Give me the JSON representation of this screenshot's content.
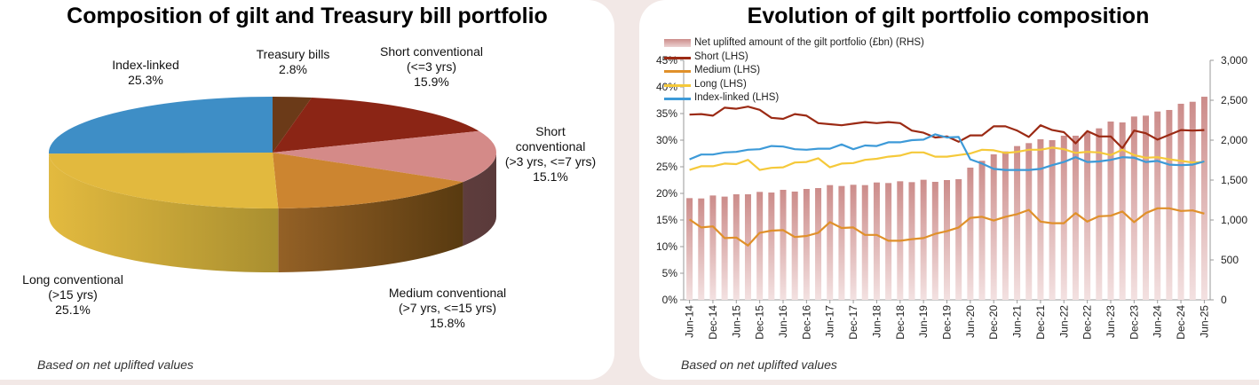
{
  "left": {
    "title": "Composition of gilt and Treasury bill portfolio",
    "footnote": "Based on net uplifted values"
  },
  "right": {
    "title": "Evolution of gilt portfolio composition",
    "footnote": "Based on net uplifted values"
  },
  "chart_data": [
    {
      "type": "pie",
      "title": "Composition of gilt and Treasury bill portfolio",
      "slices": [
        {
          "label_lines": [
            "Treasury bills"
          ],
          "value_label": "2.8%",
          "value": 2.8,
          "color": "#6b3a18"
        },
        {
          "label_lines": [
            "Short conventional",
            "(<=3 yrs)"
          ],
          "value_label": "15.9%",
          "value": 15.9,
          "color": "#8b2515"
        },
        {
          "label_lines": [
            "Short",
            "conventional",
            "(>3 yrs, <=7 yrs)"
          ],
          "value_label": "15.1%",
          "value": 15.1,
          "color": "#d48a88"
        },
        {
          "label_lines": [
            "Medium conventional",
            "(>7 yrs, <=15 yrs)"
          ],
          "value_label": "15.8%",
          "value": 15.8,
          "color": "#cc8530"
        },
        {
          "label_lines": [
            "Long conventional",
            "(>15 yrs)"
          ],
          "value_label": "25.1%",
          "value": 25.1,
          "color": "#e2b93e"
        },
        {
          "label_lines": [
            "Index-linked"
          ],
          "value_label": "25.3%",
          "value": 25.3,
          "color": "#3e8ec6"
        }
      ]
    },
    {
      "type": "bar+line",
      "title": "Evolution of gilt portfolio composition",
      "x_ticks": [
        "Jun-14",
        "Dec-14",
        "Jun-15",
        "Dec-15",
        "Jun-16",
        "Dec-16",
        "Jun-17",
        "Dec-17",
        "Jun-18",
        "Dec-18",
        "Jun-19",
        "Dec-19",
        "Jun-20",
        "Dec-20",
        "Jun-21",
        "Dec-21",
        "Jun-22",
        "Dec-22",
        "Jun-23",
        "Dec-23",
        "Jun-24",
        "Dec-24",
        "Jun-25"
      ],
      "n_points": 45,
      "y_left": {
        "ticks": [
          "0%",
          "5%",
          "10%",
          "15%",
          "20%",
          "25%",
          "30%",
          "35%",
          "40%",
          "45%"
        ],
        "range": [
          0,
          45
        ]
      },
      "y_right": {
        "ticks": [
          "0",
          "500",
          "1,000",
          "1,500",
          "2,000",
          "2,500",
          "3,000"
        ],
        "range": [
          0,
          3000
        ]
      },
      "bars": {
        "name": "Net uplifted amount of the gilt portfolio (£bn) (RHS)",
        "color": "#cf8f8d",
        "values": [
          1274,
          1270,
          1307,
          1293,
          1322,
          1322,
          1352,
          1344,
          1378,
          1356,
          1389,
          1400,
          1437,
          1426,
          1441,
          1437,
          1470,
          1463,
          1485,
          1474,
          1504,
          1478,
          1500,
          1511,
          1656,
          1741,
          1822,
          1859,
          1926,
          1963,
          2011,
          2000,
          2056,
          2056,
          2093,
          2148,
          2233,
          2222,
          2296,
          2307,
          2359,
          2378,
          2456,
          2481,
          2544
        ]
      },
      "series": [
        {
          "name": "Short (LHS)",
          "color": "#9b2a14",
          "values": [
            34.8,
            34.9,
            34.6,
            36.1,
            35.9,
            36.3,
            35.7,
            34.2,
            34.0,
            34.9,
            34.6,
            33.2,
            33.0,
            32.8,
            33.1,
            33.4,
            33.2,
            33.4,
            33.2,
            31.8,
            31.4,
            30.5,
            30.7,
            29.7,
            30.9,
            30.9,
            32.6,
            32.6,
            31.8,
            30.6,
            32.8,
            31.9,
            31.5,
            29.4,
            31.7,
            30.7,
            30.7,
            28.5,
            31.8,
            31.3,
            30.1,
            31.0,
            31.9,
            31.8,
            31.9
          ]
        },
        {
          "name": "Medium (LHS)",
          "color": "#e0902a",
          "values": [
            15.1,
            13.6,
            13.8,
            11.6,
            11.7,
            10.2,
            12.6,
            13.0,
            13.1,
            11.8,
            12.0,
            12.6,
            14.6,
            13.5,
            13.6,
            12.2,
            12.2,
            11.1,
            11.1,
            11.4,
            11.6,
            12.4,
            12.9,
            13.6,
            15.4,
            15.6,
            14.9,
            15.6,
            16.1,
            16.9,
            14.7,
            14.4,
            14.4,
            16.3,
            14.7,
            15.7,
            15.8,
            16.6,
            14.6,
            16.3,
            17.2,
            17.2,
            16.7,
            16.8,
            16.2
          ]
        },
        {
          "name": "Long (LHS)",
          "color": "#f5c93a",
          "values": [
            24.4,
            25.1,
            25.1,
            25.6,
            25.5,
            26.3,
            24.4,
            24.8,
            24.9,
            25.8,
            25.9,
            26.6,
            24.9,
            25.6,
            25.7,
            26.3,
            26.5,
            26.9,
            27.1,
            27.7,
            27.7,
            26.9,
            26.9,
            27.2,
            27.5,
            28.2,
            28.1,
            27.6,
            27.8,
            28.2,
            28.2,
            28.6,
            28.3,
            27.6,
            27.8,
            27.7,
            27.2,
            28.2,
            27.2,
            26.7,
            26.8,
            26.4,
            26.1,
            25.8,
            25.9
          ]
        },
        {
          "name": "Index-linked (LHS)",
          "color": "#3d9ad8",
          "values": [
            26.4,
            27.3,
            27.3,
            27.7,
            27.8,
            28.2,
            28.3,
            28.9,
            28.8,
            28.3,
            28.2,
            28.4,
            28.4,
            29.2,
            28.3,
            29.0,
            28.9,
            29.6,
            29.6,
            30.0,
            30.1,
            31.1,
            30.5,
            30.6,
            26.4,
            25.6,
            24.6,
            24.4,
            24.4,
            24.4,
            24.6,
            25.3,
            25.9,
            26.8,
            25.9,
            26.0,
            26.3,
            26.8,
            26.7,
            25.9,
            26.1,
            25.4,
            25.3,
            25.4,
            26.0
          ]
        }
      ],
      "legend_placement": "top-left"
    }
  ]
}
